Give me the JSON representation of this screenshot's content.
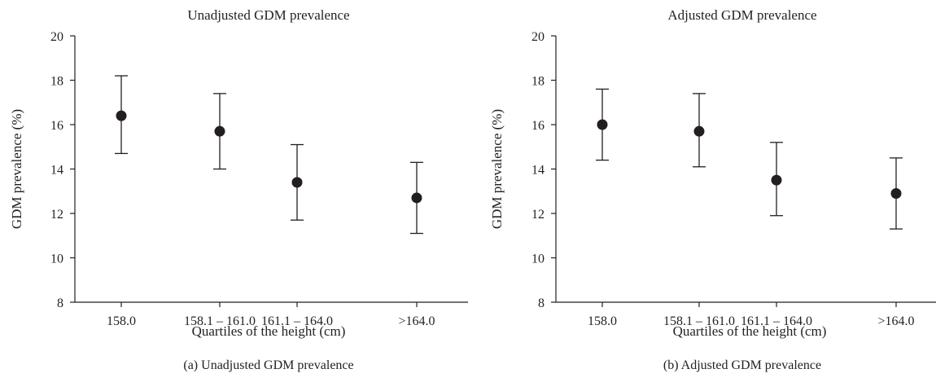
{
  "chart_data": [
    {
      "type": "scatter",
      "title": "Unadjusted GDM prevalence",
      "caption": "(a) Unadjusted GDM prevalence",
      "xlabel": "Quartiles of the height (cm)",
      "ylabel": "GDM prevalence (%)",
      "ylim": [
        8,
        20
      ],
      "yticks": [
        "8",
        "10",
        "12",
        "14",
        "16",
        "18",
        "20"
      ],
      "categories": [
        "158.0",
        "158.1 – 161.0",
        "161.1 – 164.0",
        ">164.0"
      ],
      "series": [
        {
          "values": [
            16.4,
            15.7,
            13.4,
            12.7
          ],
          "lower": [
            14.7,
            14.0,
            11.7,
            11.1
          ],
          "upper": [
            18.2,
            17.4,
            15.1,
            14.3
          ]
        }
      ],
      "grid": false
    },
    {
      "type": "scatter",
      "title": "Adjusted GDM prevalence",
      "caption": "(b) Adjusted GDM prevalence",
      "xlabel": "Quartiles of the height (cm)",
      "ylabel": "GDM prevalence (%)",
      "ylim": [
        8,
        20
      ],
      "yticks": [
        "8",
        "10",
        "12",
        "14",
        "16",
        "18",
        "20"
      ],
      "categories": [
        "158.0",
        "158.1 – 161.0",
        "161.1 – 164.0",
        ">164.0"
      ],
      "series": [
        {
          "values": [
            16.0,
            15.7,
            13.5,
            12.9
          ],
          "lower": [
            14.4,
            14.1,
            11.9,
            11.3
          ],
          "upper": [
            17.6,
            17.4,
            15.2,
            14.5
          ]
        }
      ],
      "grid": false
    }
  ],
  "colors": {
    "ink": "#231f20"
  }
}
